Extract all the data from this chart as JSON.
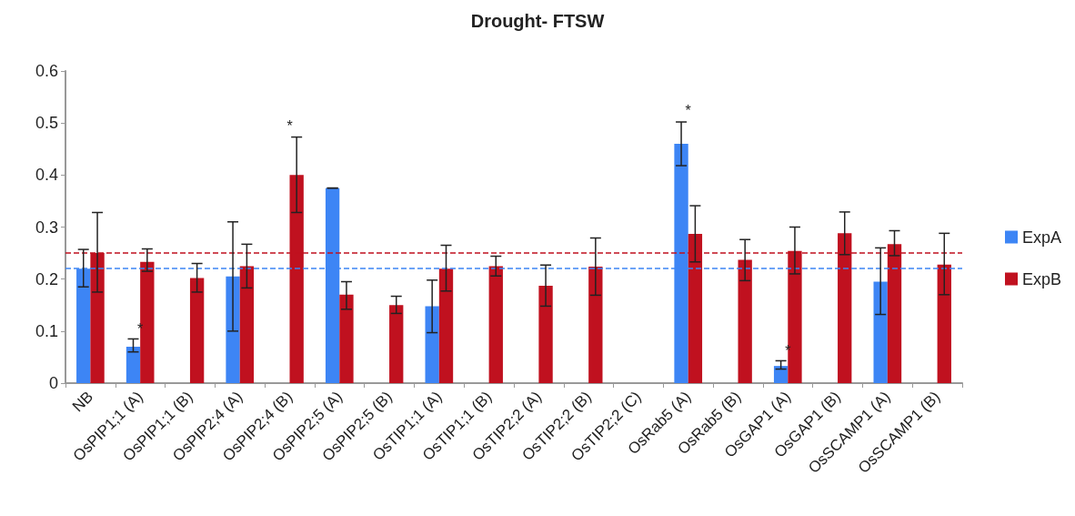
{
  "chart_data": {
    "type": "bar",
    "title": "Drought- FTSW",
    "categories": [
      "NB",
      "OsPIP1;1 (A)",
      "OsPIP1;1 (B)",
      "OsPIP2;4 (A)",
      "OsPIP2;4 (B)",
      "OsPIP2;5 (A)",
      "OsPIP2;5 (B)",
      "OsTIP1;1 (A)",
      "OsTIP1;1 (B)",
      "OsTIP2;2 (A)",
      "OsTIP2;2 (B)",
      "OsTIP2;2 (C)",
      "OsRab5 (A)",
      "OsRab5 (B)",
      "OsGAP1 (A)",
      "OsGAP1 (B)",
      "OsSCAMP1 (A)",
      "OsSCAMP1 (B)"
    ],
    "series": [
      {
        "name": "ExpA",
        "color": "#3d85f5",
        "values": [
          0.22,
          0.07,
          null,
          0.205,
          null,
          0.375,
          null,
          0.148,
          null,
          null,
          null,
          null,
          0.46,
          null,
          0.033,
          null,
          0.195,
          null
        ],
        "errors": [
          [
            0.185,
            0.257
          ],
          [
            0.06,
            0.085
          ],
          null,
          [
            0.1,
            0.31
          ],
          null,
          0,
          null,
          [
            0.097,
            0.198
          ],
          null,
          null,
          null,
          null,
          [
            0.418,
            0.502
          ],
          null,
          [
            0.027,
            0.043
          ],
          null,
          [
            0.132,
            0.26
          ],
          null
        ]
      },
      {
        "name": "ExpB",
        "color": "#c0111f",
        "values": [
          0.25,
          0.233,
          0.202,
          0.225,
          0.4,
          0.17,
          0.15,
          0.22,
          0.225,
          0.187,
          0.224,
          null,
          0.287,
          0.237,
          0.254,
          0.288,
          0.267,
          0.228
        ],
        "errors": [
          [
            0.175,
            0.328
          ],
          [
            0.215,
            0.258
          ],
          [
            0.175,
            0.23
          ],
          [
            0.183,
            0.267
          ],
          [
            0.328,
            0.473
          ],
          [
            0.142,
            0.195
          ],
          [
            0.134,
            0.167
          ],
          [
            0.177,
            0.265
          ],
          [
            0.206,
            0.244
          ],
          [
            0.148,
            0.227
          ],
          [
            0.169,
            0.279
          ],
          null,
          [
            0.233,
            0.341
          ],
          [
            0.197,
            0.276
          ],
          [
            0.21,
            0.3
          ],
          [
            0.247,
            0.329
          ],
          [
            0.245,
            0.293
          ],
          [
            0.17,
            0.288
          ]
        ]
      }
    ],
    "ylim": [
      0,
      0.6
    ],
    "yticks": [
      0,
      0.1,
      0.2,
      0.3,
      0.4,
      0.5,
      0.6
    ],
    "grid": false,
    "legend": "right",
    "ref_lines": [
      {
        "axis": "y",
        "value": 0.25,
        "color": "#c0111f",
        "line_style": "dashed"
      },
      {
        "axis": "y",
        "value": 0.22,
        "color": "#3d85f5",
        "line_style": "dashed"
      }
    ],
    "annotations": [
      {
        "text": "*",
        "x": "OsPIP1;1 (A)",
        "y": 0.09
      },
      {
        "text": "*",
        "x": "OsPIP2;4 (B)",
        "y": 0.48
      },
      {
        "text": "*",
        "x": "OsRab5 (A)",
        "y": 0.51
      },
      {
        "text": "*",
        "x": "OsGAP1 (A)",
        "y": 0.048
      }
    ]
  }
}
